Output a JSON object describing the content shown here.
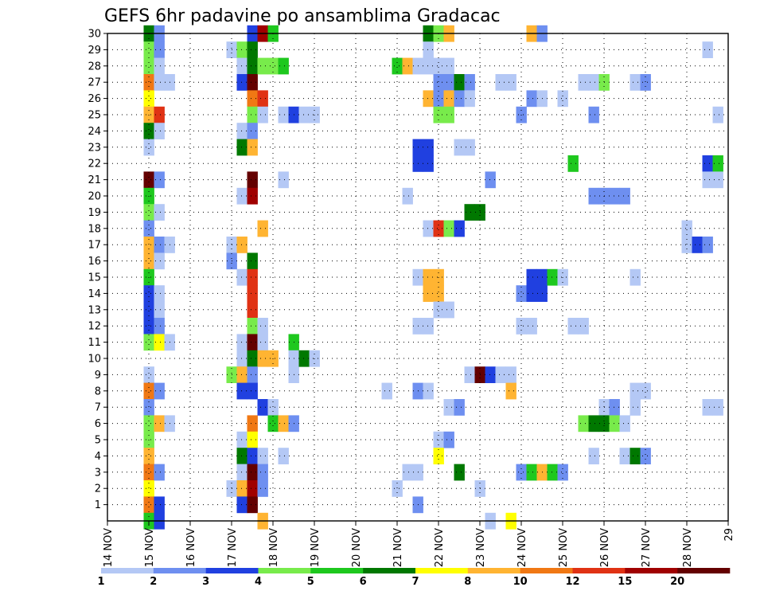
{
  "chart_data": {
    "type": "heatmap",
    "title": "GEFS 6hr padavine po ansamblima Gradacac",
    "xlabel": "",
    "ylabel": "",
    "x_tick_labels": [
      "14 NOV",
      "15 NOV",
      "16 NOV",
      "17 NOV",
      "18 NOV",
      "19 NOV",
      "20 NOV",
      "21 NOV",
      "22 NOV",
      "23 NOV",
      "24 NOV",
      "25 NOV",
      "26 NOV",
      "27 NOV",
      "28 NOV",
      "29"
    ],
    "y_tick_labels": [
      "1",
      "2",
      "3",
      "4",
      "5",
      "6",
      "7",
      "8",
      "9",
      "10",
      "11",
      "12",
      "13",
      "14",
      "15",
      "16",
      "17",
      "18",
      "19",
      "20",
      "21",
      "22",
      "23",
      "24",
      "25",
      "26",
      "27",
      "28",
      "29",
      "30"
    ],
    "xlim": [
      14.0,
      29.0
    ],
    "ylim": [
      0,
      30
    ],
    "grid": true,
    "colorbar": {
      "labels": [
        "1",
        "2",
        "3",
        "4",
        "5",
        "6",
        "7",
        "8",
        "10",
        "12",
        "15",
        "20"
      ],
      "colors": [
        "#b4c8f5",
        "#6e8ff0",
        "#2040e0",
        "#78eb4b",
        "#1ec81e",
        "#007800",
        "#ffff00",
        "#ffb432",
        "#f07814",
        "#e03214",
        "#a00000",
        "#640000"
      ]
    },
    "cells": [
      [
        15.0,
        30,
        5
      ],
      [
        15.0,
        29,
        3
      ],
      [
        15.0,
        28,
        3
      ],
      [
        15.0,
        27,
        8
      ],
      [
        15.0,
        26,
        6
      ],
      [
        15.0,
        25,
        7
      ],
      [
        15.0,
        24,
        5
      ],
      [
        15.0,
        23,
        0
      ],
      [
        15.0,
        21,
        11
      ],
      [
        15.0,
        20,
        4
      ],
      [
        15.0,
        19,
        3
      ],
      [
        15.0,
        18,
        1
      ],
      [
        15.0,
        17,
        7
      ],
      [
        15.0,
        16,
        7
      ],
      [
        15.0,
        15,
        4
      ],
      [
        15.0,
        14,
        2
      ],
      [
        15.0,
        13,
        2
      ],
      [
        15.0,
        12,
        2
      ],
      [
        15.0,
        11,
        3
      ],
      [
        15.0,
        9,
        0
      ],
      [
        15.0,
        8,
        8
      ],
      [
        15.0,
        7,
        1
      ],
      [
        15.0,
        6,
        3
      ],
      [
        15.0,
        5,
        3
      ],
      [
        15.0,
        4,
        7
      ],
      [
        15.0,
        3,
        8
      ],
      [
        15.0,
        2,
        6
      ],
      [
        15.0,
        1,
        8
      ],
      [
        15.0,
        0,
        4
      ],
      [
        15.25,
        30,
        1
      ],
      [
        15.25,
        29,
        1
      ],
      [
        15.25,
        28,
        0
      ],
      [
        15.25,
        27,
        0
      ],
      [
        15.25,
        25,
        9
      ],
      [
        15.25,
        24,
        0
      ],
      [
        15.25,
        21,
        1
      ],
      [
        15.25,
        19,
        0
      ],
      [
        15.25,
        17,
        1
      ],
      [
        15.25,
        16,
        0
      ],
      [
        15.25,
        14,
        0
      ],
      [
        15.25,
        13,
        0
      ],
      [
        15.25,
        12,
        1
      ],
      [
        15.25,
        11,
        6
      ],
      [
        15.25,
        8,
        1
      ],
      [
        15.25,
        6,
        7
      ],
      [
        15.25,
        3,
        1
      ],
      [
        15.25,
        1,
        2
      ],
      [
        15.25,
        0,
        2
      ],
      [
        15.5,
        27,
        0
      ],
      [
        15.5,
        17,
        0
      ],
      [
        15.5,
        11,
        0
      ],
      [
        15.5,
        6,
        0
      ],
      [
        17.0,
        29,
        0
      ],
      [
        17.0,
        17,
        0
      ],
      [
        17.0,
        16,
        1
      ],
      [
        17.0,
        9,
        3
      ],
      [
        17.0,
        2,
        0
      ],
      [
        17.25,
        29,
        3
      ],
      [
        17.25,
        28,
        0
      ],
      [
        17.25,
        27,
        2
      ],
      [
        17.25,
        24,
        0
      ],
      [
        17.25,
        23,
        5
      ],
      [
        17.25,
        20,
        0
      ],
      [
        17.25,
        17,
        7
      ],
      [
        17.25,
        15,
        0
      ],
      [
        17.25,
        11,
        0
      ],
      [
        17.25,
        10,
        0
      ],
      [
        17.25,
        9,
        7
      ],
      [
        17.25,
        8,
        2
      ],
      [
        17.25,
        5,
        0
      ],
      [
        17.25,
        4,
        5
      ],
      [
        17.25,
        3,
        0
      ],
      [
        17.25,
        2,
        7
      ],
      [
        17.25,
        1,
        2
      ],
      [
        17.5,
        30,
        2
      ],
      [
        17.5,
        29,
        5
      ],
      [
        17.5,
        28,
        5
      ],
      [
        17.5,
        27,
        11
      ],
      [
        17.5,
        26,
        8
      ],
      [
        17.5,
        25,
        3
      ],
      [
        17.5,
        24,
        1
      ],
      [
        17.5,
        23,
        7
      ],
      [
        17.5,
        21,
        11
      ],
      [
        17.5,
        20,
        10
      ],
      [
        17.5,
        16,
        5
      ],
      [
        17.5,
        15,
        9
      ],
      [
        17.5,
        14,
        9
      ],
      [
        17.5,
        13,
        9
      ],
      [
        17.5,
        12,
        3
      ],
      [
        17.5,
        11,
        11
      ],
      [
        17.5,
        10,
        5
      ],
      [
        17.5,
        9,
        1
      ],
      [
        17.5,
        8,
        2
      ],
      [
        17.5,
        6,
        8
      ],
      [
        17.5,
        5,
        6
      ],
      [
        17.5,
        4,
        2
      ],
      [
        17.5,
        3,
        11
      ],
      [
        17.5,
        2,
        10
      ],
      [
        17.5,
        1,
        11
      ],
      [
        17.75,
        30,
        10
      ],
      [
        17.75,
        28,
        3
      ],
      [
        17.75,
        26,
        9
      ],
      [
        17.75,
        25,
        0
      ],
      [
        17.75,
        18,
        7
      ],
      [
        17.75,
        12,
        0
      ],
      [
        17.75,
        11,
        0
      ],
      [
        17.75,
        10,
        7
      ],
      [
        17.75,
        7,
        2
      ],
      [
        17.75,
        4,
        0
      ],
      [
        17.75,
        3,
        1
      ],
      [
        17.75,
        2,
        1
      ],
      [
        17.75,
        0,
        7
      ],
      [
        18.0,
        30,
        4
      ],
      [
        18.0,
        28,
        3
      ],
      [
        18.0,
        10,
        7
      ],
      [
        18.0,
        7,
        0
      ],
      [
        18.0,
        6,
        4
      ],
      [
        18.25,
        28,
        4
      ],
      [
        18.25,
        25,
        0
      ],
      [
        18.25,
        21,
        0
      ],
      [
        18.25,
        6,
        7
      ],
      [
        18.25,
        4,
        0
      ],
      [
        18.5,
        25,
        2
      ],
      [
        18.5,
        11,
        4
      ],
      [
        18.5,
        10,
        0
      ],
      [
        18.5,
        9,
        0
      ],
      [
        18.5,
        6,
        1
      ],
      [
        18.75,
        25,
        0
      ],
      [
        18.75,
        10,
        5
      ],
      [
        19.0,
        25,
        0
      ],
      [
        19.0,
        10,
        0
      ],
      [
        20.75,
        8,
        0
      ],
      [
        21.0,
        28,
        4
      ],
      [
        21.0,
        2,
        0
      ],
      [
        21.25,
        28,
        7
      ],
      [
        21.25,
        20,
        0
      ],
      [
        21.25,
        3,
        0
      ],
      [
        21.5,
        28,
        0
      ],
      [
        21.5,
        23,
        2
      ],
      [
        21.5,
        22,
        2
      ],
      [
        21.5,
        15,
        0
      ],
      [
        21.5,
        12,
        0
      ],
      [
        21.5,
        8,
        1
      ],
      [
        21.5,
        3,
        0
      ],
      [
        21.5,
        1,
        1
      ],
      [
        21.75,
        30,
        5
      ],
      [
        21.75,
        29,
        0
      ],
      [
        21.75,
        28,
        0
      ],
      [
        21.75,
        26,
        7
      ],
      [
        21.75,
        23,
        2
      ],
      [
        21.75,
        22,
        2
      ],
      [
        21.75,
        18,
        0
      ],
      [
        21.75,
        15,
        7
      ],
      [
        21.75,
        14,
        7
      ],
      [
        21.75,
        12,
        0
      ],
      [
        21.75,
        8,
        0
      ],
      [
        22.0,
        30,
        3
      ],
      [
        22.0,
        28,
        0
      ],
      [
        22.0,
        27,
        1
      ],
      [
        22.0,
        26,
        1
      ],
      [
        22.0,
        25,
        3
      ],
      [
        22.0,
        18,
        9
      ],
      [
        22.0,
        15,
        7
      ],
      [
        22.0,
        14,
        7
      ],
      [
        22.0,
        13,
        0
      ],
      [
        22.0,
        5,
        0
      ],
      [
        22.0,
        4,
        6
      ],
      [
        22.25,
        30,
        7
      ],
      [
        22.25,
        28,
        0
      ],
      [
        22.25,
        27,
        1
      ],
      [
        22.25,
        26,
        7
      ],
      [
        22.25,
        25,
        3
      ],
      [
        22.25,
        18,
        3
      ],
      [
        22.25,
        13,
        0
      ],
      [
        22.25,
        7,
        0
      ],
      [
        22.25,
        5,
        1
      ],
      [
        22.5,
        27,
        5
      ],
      [
        22.5,
        26,
        1
      ],
      [
        22.5,
        23,
        0
      ],
      [
        22.5,
        18,
        2
      ],
      [
        22.5,
        7,
        1
      ],
      [
        22.5,
        3,
        5
      ],
      [
        22.75,
        27,
        1
      ],
      [
        22.75,
        26,
        0
      ],
      [
        22.75,
        23,
        0
      ],
      [
        22.75,
        19,
        5
      ],
      [
        22.75,
        9,
        0
      ],
      [
        23.0,
        19,
        5
      ],
      [
        23.0,
        9,
        11
      ],
      [
        23.0,
        2,
        0
      ],
      [
        23.25,
        21,
        1
      ],
      [
        23.25,
        9,
        2
      ],
      [
        23.25,
        0,
        0
      ],
      [
        23.5,
        27,
        0
      ],
      [
        23.5,
        9,
        0
      ],
      [
        23.75,
        27,
        0
      ],
      [
        23.75,
        9,
        0
      ],
      [
        23.75,
        8,
        7
      ],
      [
        23.75,
        0,
        6
      ],
      [
        24.0,
        25,
        1
      ],
      [
        24.0,
        14,
        1
      ],
      [
        24.0,
        12,
        0
      ],
      [
        24.0,
        3,
        1
      ],
      [
        24.25,
        30,
        7
      ],
      [
        24.25,
        26,
        1
      ],
      [
        24.25,
        15,
        2
      ],
      [
        24.25,
        14,
        2
      ],
      [
        24.25,
        12,
        0
      ],
      [
        24.25,
        3,
        4
      ],
      [
        24.5,
        30,
        1
      ],
      [
        24.5,
        26,
        0
      ],
      [
        24.5,
        15,
        2
      ],
      [
        24.5,
        14,
        2
      ],
      [
        24.5,
        3,
        7
      ],
      [
        24.75,
        15,
        4
      ],
      [
        24.75,
        3,
        4
      ],
      [
        25.0,
        26,
        0
      ],
      [
        25.0,
        15,
        0
      ],
      [
        25.0,
        3,
        1
      ],
      [
        25.25,
        22,
        4
      ],
      [
        25.25,
        12,
        0
      ],
      [
        25.5,
        27,
        0
      ],
      [
        25.5,
        12,
        0
      ],
      [
        25.5,
        6,
        3
      ],
      [
        25.75,
        27,
        0
      ],
      [
        25.75,
        25,
        1
      ],
      [
        25.75,
        20,
        1
      ],
      [
        25.75,
        6,
        5
      ],
      [
        25.75,
        4,
        0
      ],
      [
        26.0,
        27,
        3
      ],
      [
        26.0,
        20,
        1
      ],
      [
        26.0,
        7,
        0
      ],
      [
        26.0,
        6,
        5
      ],
      [
        26.25,
        20,
        1
      ],
      [
        26.25,
        7,
        1
      ],
      [
        26.25,
        6,
        3
      ],
      [
        26.5,
        20,
        1
      ],
      [
        26.5,
        6,
        0
      ],
      [
        26.5,
        4,
        0
      ],
      [
        26.75,
        27,
        0
      ],
      [
        26.75,
        15,
        0
      ],
      [
        26.75,
        8,
        0
      ],
      [
        26.75,
        7,
        0
      ],
      [
        26.75,
        4,
        5
      ],
      [
        27.0,
        27,
        1
      ],
      [
        27.0,
        8,
        0
      ],
      [
        27.0,
        4,
        1
      ],
      [
        28.0,
        18,
        0
      ],
      [
        28.0,
        17,
        0
      ],
      [
        28.25,
        17,
        2
      ],
      [
        28.5,
        29,
        0
      ],
      [
        28.5,
        22,
        2
      ],
      [
        28.5,
        21,
        0
      ],
      [
        28.5,
        17,
        1
      ],
      [
        28.5,
        7,
        0
      ],
      [
        28.75,
        25,
        0
      ],
      [
        28.75,
        22,
        4
      ],
      [
        28.75,
        21,
        0
      ],
      [
        28.75,
        7,
        0
      ]
    ]
  }
}
